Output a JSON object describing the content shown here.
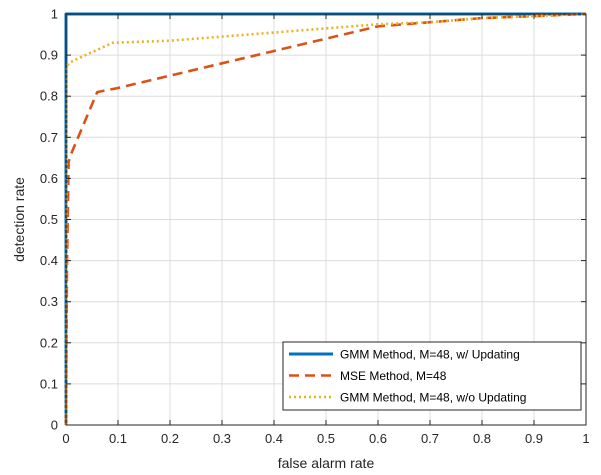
{
  "chart_data": {
    "type": "line",
    "title": "",
    "xlabel": "false alarm rate",
    "ylabel": "detection rate",
    "xlim": [
      0,
      1
    ],
    "ylim": [
      0,
      1
    ],
    "x_ticks": [
      "0",
      "0.1",
      "0.2",
      "0.3",
      "0.4",
      "0.5",
      "0.6",
      "0.7",
      "0.8",
      "0.9",
      "1"
    ],
    "y_ticks": [
      "0",
      "0.1",
      "0.2",
      "0.3",
      "0.4",
      "0.5",
      "0.6",
      "0.7",
      "0.8",
      "0.9",
      "1"
    ],
    "grid": true,
    "legend_position": "bottom-right",
    "series": [
      {
        "name": "GMM Method, M=48, w/ Updating",
        "color": "#0072bd",
        "style": "solid",
        "x": [
          0,
          0,
          1
        ],
        "y": [
          0,
          1,
          1
        ]
      },
      {
        "name": "MSE Method, M=48",
        "color": "#d95319",
        "style": "dashed",
        "x": [
          0,
          0.002,
          0.005,
          0.01,
          0.06,
          0.1,
          0.2,
          0.3,
          0.4,
          0.5,
          0.6,
          0.7,
          0.8,
          0.9,
          1
        ],
        "y": [
          0,
          0.4,
          0.64,
          0.66,
          0.81,
          0.82,
          0.85,
          0.88,
          0.91,
          0.94,
          0.97,
          0.98,
          0.99,
          0.995,
          1
        ]
      },
      {
        "name": "GMM Method, M=48, w/o Updating",
        "color": "#edb120",
        "style": "dotted",
        "x": [
          0,
          0.001,
          0.005,
          0.02,
          0.09,
          0.2,
          0.3,
          0.4,
          0.5,
          0.6,
          0.7,
          0.8,
          0.9,
          1
        ],
        "y": [
          0,
          0.87,
          0.88,
          0.89,
          0.93,
          0.935,
          0.945,
          0.955,
          0.965,
          0.975,
          0.98,
          0.99,
          0.995,
          1
        ]
      }
    ]
  }
}
